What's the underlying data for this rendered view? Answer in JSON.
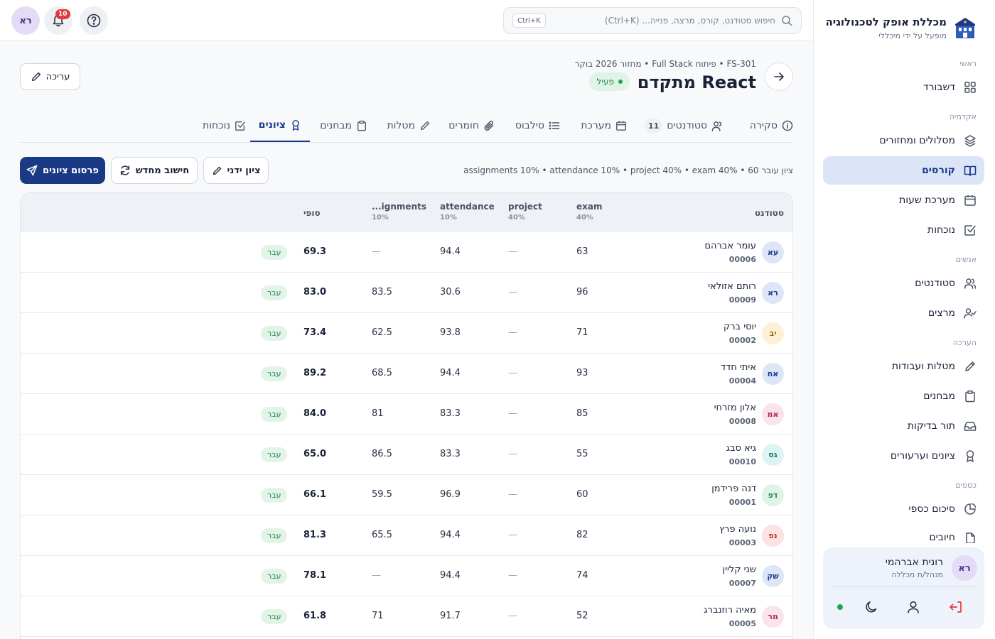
{
  "brand": {
    "title": "מכללת אופק לטכנולוגיה",
    "subtitle": "מופעל על ידי מיכללי"
  },
  "sidebar": {
    "sections": {
      "main": "ראשי",
      "academic": "אקדמיה",
      "people": "אנשים",
      "assessment": "הערכה",
      "finance": "כספים"
    },
    "items": [
      {
        "label": "דשבורד",
        "icon": "grid-icon"
      },
      {
        "label": "מסלולים ומחזורים",
        "icon": "layers-icon"
      },
      {
        "label": "קורסים",
        "icon": "book-icon"
      },
      {
        "label": "מערכת שעות",
        "icon": "calendar-icon"
      },
      {
        "label": "נוכחות",
        "icon": "checkbox-icon"
      },
      {
        "label": "סטודנטים",
        "icon": "users-icon"
      },
      {
        "label": "מרצים",
        "icon": "user-check-icon"
      },
      {
        "label": "מטלות ועבודות",
        "icon": "pencil-icon"
      },
      {
        "label": "מבחנים",
        "icon": "clipboard-icon"
      },
      {
        "label": "תור בדיקות",
        "icon": "inbox-icon"
      },
      {
        "label": "ציונים וערעורים",
        "icon": "award-icon"
      },
      {
        "label": "סיכום כספי",
        "icon": "pie-chart-icon"
      },
      {
        "label": "חיובים",
        "icon": "file-icon"
      }
    ]
  },
  "user": {
    "initials": "רא",
    "name": "רונית אברהמי",
    "role": "מנהל/ת מכללה"
  },
  "topbar": {
    "search_placeholder": "חיפוש סטודנט, קורס, מרצה, פנייה... (Ctrl+K)",
    "shortcut": "Ctrl+K",
    "notifications_count": "10",
    "avatar_initials": "רא"
  },
  "course": {
    "breadcrumb": "FS-301 • פיתוח Full Stack • מחזור 2026 בוקר",
    "title": "React מתקדם",
    "status": "פעיל",
    "edit_label": "עריכה"
  },
  "tabs": [
    {
      "label": "סקירה",
      "icon": "info-icon"
    },
    {
      "label": "סטודנטים",
      "icon": "users-icon",
      "count": "11"
    },
    {
      "label": "מערכת",
      "icon": "calendar-icon"
    },
    {
      "label": "סילבוס",
      "icon": "list-icon"
    },
    {
      "label": "חומרים",
      "icon": "paperclip-icon"
    },
    {
      "label": "מטלות",
      "icon": "pencil-icon"
    },
    {
      "label": "מבחנים",
      "icon": "clipboard-icon"
    },
    {
      "label": "ציונים",
      "icon": "award-icon",
      "active": true
    },
    {
      "label": "נוכחות",
      "icon": "checkbox-icon"
    }
  ],
  "grades": {
    "formula": "ציון עובר 60 • assignments 10% • attendance 10% • project 40% • exam 40%",
    "actions": {
      "manual": "ציון ידני",
      "recalc": "חישוב מחדש",
      "publish": "פרסום ציונים"
    },
    "columns": {
      "student": "סטודנט",
      "exam": "exam",
      "exam_w": "40%",
      "project": "project",
      "project_w": "40%",
      "attendance": "attendance",
      "attendance_w": "10%",
      "assignments": "...ignments",
      "assignments_w": "10%",
      "final": "סופי"
    },
    "rows": [
      {
        "initials": "עא",
        "name": "עומר אברהם",
        "id": "00006",
        "exam": "63",
        "project": "—",
        "attendance": "94.4",
        "assignments": "—",
        "final": "69.3",
        "status": "עבר",
        "avatar_bg": "#dde6f7",
        "avatar_fg": "#1a3b8c"
      },
      {
        "initials": "רא",
        "name": "רותם אזולאי",
        "id": "00009",
        "exam": "96",
        "project": "—",
        "attendance": "30.6",
        "assignments": "83.5",
        "final": "83.0",
        "status": "עבר",
        "avatar_bg": "#dde6f7",
        "avatar_fg": "#1a3b8c"
      },
      {
        "initials": "יב",
        "name": "יוסי ברק",
        "id": "00002",
        "exam": "71",
        "project": "—",
        "attendance": "93.8",
        "assignments": "62.5",
        "final": "73.4",
        "status": "עבר",
        "avatar_bg": "#fdf0d4",
        "avatar_fg": "#a0670e"
      },
      {
        "initials": "אח",
        "name": "איתי חדד",
        "id": "00004",
        "exam": "93",
        "project": "—",
        "attendance": "94.4",
        "assignments": "68.5",
        "final": "89.2",
        "status": "עבר",
        "avatar_bg": "#dde6f7",
        "avatar_fg": "#1a3b8c"
      },
      {
        "initials": "אמ",
        "name": "אלון מזרחי",
        "id": "00008",
        "exam": "85",
        "project": "—",
        "attendance": "83.3",
        "assignments": "81",
        "final": "84.0",
        "status": "עבר",
        "avatar_bg": "#fbe3ec",
        "avatar_fg": "#a8285c"
      },
      {
        "initials": "גס",
        "name": "גיא סבג",
        "id": "00010",
        "exam": "55",
        "project": "—",
        "attendance": "83.3",
        "assignments": "86.5",
        "final": "65.0",
        "status": "עבר",
        "avatar_bg": "#dcf4f3",
        "avatar_fg": "#1a7a76"
      },
      {
        "initials": "דפ",
        "name": "דנה פרידמן",
        "id": "00001",
        "exam": "60",
        "project": "—",
        "attendance": "96.9",
        "assignments": "59.5",
        "final": "66.1",
        "status": "עבר",
        "avatar_bg": "#dff3e6",
        "avatar_fg": "#1f8a4c"
      },
      {
        "initials": "נפ",
        "name": "נועה פרץ",
        "id": "00003",
        "exam": "82",
        "project": "—",
        "attendance": "94.4",
        "assignments": "65.5",
        "final": "81.3",
        "status": "עבר",
        "avatar_bg": "#fbe3e3",
        "avatar_fg": "#b03535"
      },
      {
        "initials": "שק",
        "name": "שני קליין",
        "id": "00007",
        "exam": "74",
        "project": "—",
        "attendance": "94.4",
        "assignments": "—",
        "final": "78.1",
        "status": "עבר",
        "avatar_bg": "#dde6f7",
        "avatar_fg": "#1a3b8c"
      },
      {
        "initials": "מר",
        "name": "מאיה רוזנברג",
        "id": "00005",
        "exam": "52",
        "project": "—",
        "attendance": "91.7",
        "assignments": "71",
        "final": "61.8",
        "status": "עבר",
        "avatar_bg": "#fbe3ec",
        "avatar_fg": "#a8285c"
      }
    ]
  },
  "colors": {
    "primary": "#1b3a86",
    "active_nav_bg": "#dbe5f7",
    "pass_bg": "#e2f4e8",
    "pass_fg": "#1f8a4c",
    "badge_red": "#e0393e"
  }
}
